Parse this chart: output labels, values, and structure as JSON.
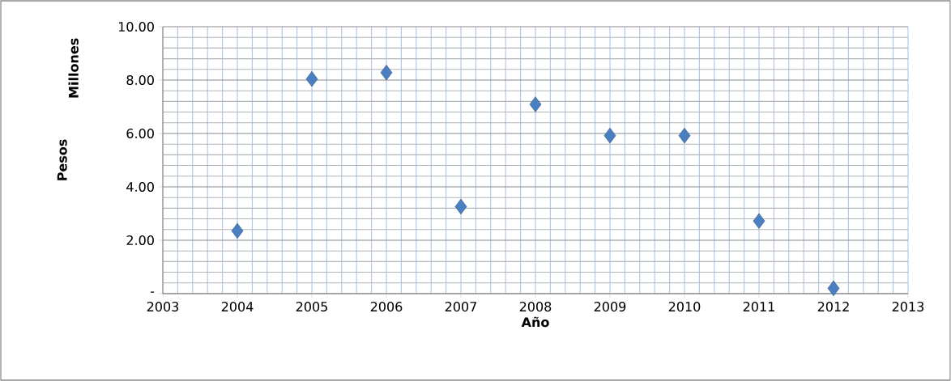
{
  "chart_data": {
    "type": "scatter",
    "xlabel": "Año",
    "ylabel": "Pesos",
    "annotations": [
      "Millones"
    ],
    "x": [
      2004,
      2005,
      2006,
      2007,
      2008,
      2009,
      2010,
      2011,
      2012
    ],
    "values": [
      2.35,
      8.04,
      8.28,
      3.26,
      7.09,
      5.92,
      5.92,
      2.72,
      0.2
    ],
    "color": "#4a7fc1",
    "marker": "diamond",
    "grid": true,
    "xlim": [
      2003,
      2013
    ],
    "xticks": [
      2003,
      2004,
      2005,
      2006,
      2007,
      2008,
      2009,
      2010,
      2011,
      2012,
      2013
    ],
    "ylim": [
      0,
      10
    ],
    "yticks": [
      {
        "value": 0,
        "label": "-"
      },
      {
        "value": 2,
        "label": "2.00"
      },
      {
        "value": 4,
        "label": "4.00"
      },
      {
        "value": 6,
        "label": "6.00"
      },
      {
        "value": 8,
        "label": "8.00"
      },
      {
        "value": 10,
        "label": "10.00"
      }
    ]
  }
}
